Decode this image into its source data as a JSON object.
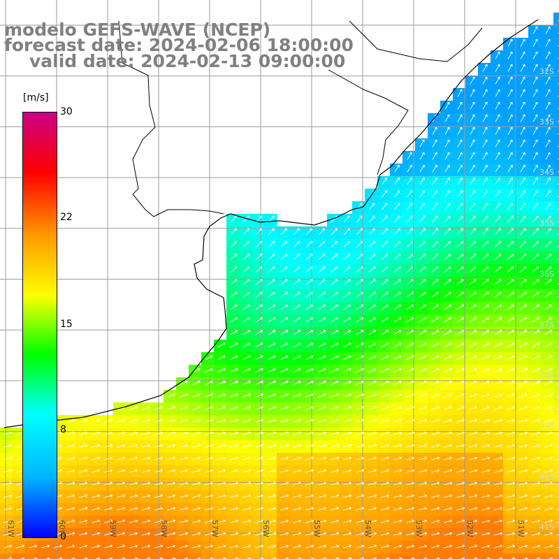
{
  "header": {
    "title": "modelo GEFS-WAVE (NCEP)",
    "forecast_date": "forecast date: 2024-02-06 18:00:00",
    "valid_date": "valid date: 2024-02-13 09:00:00"
  },
  "colorbar": {
    "units": "[m/s]",
    "ticks": [
      "30",
      "22",
      "15",
      "8",
      "0"
    ],
    "tick_values": [
      30,
      22,
      15,
      8,
      0
    ],
    "colors": [
      "#0000ff",
      "#00b4ff",
      "#00ffff",
      "#00ff00",
      "#ffff00",
      "#ff9900",
      "#ff0000",
      "#cc0088"
    ]
  },
  "axes": {
    "lat_labels": [
      "32S",
      "33S",
      "34S",
      "35S",
      "36S",
      "37S",
      "38S",
      "39S",
      "40S",
      "41S"
    ],
    "lon_labels": [
      "61W",
      "60W",
      "59W",
      "58W",
      "57W",
      "56W",
      "55W",
      "54W",
      "53W",
      "52W",
      "51W"
    ]
  },
  "map": {
    "land_color": "#ffffff",
    "wind_field_note": ""
  }
}
